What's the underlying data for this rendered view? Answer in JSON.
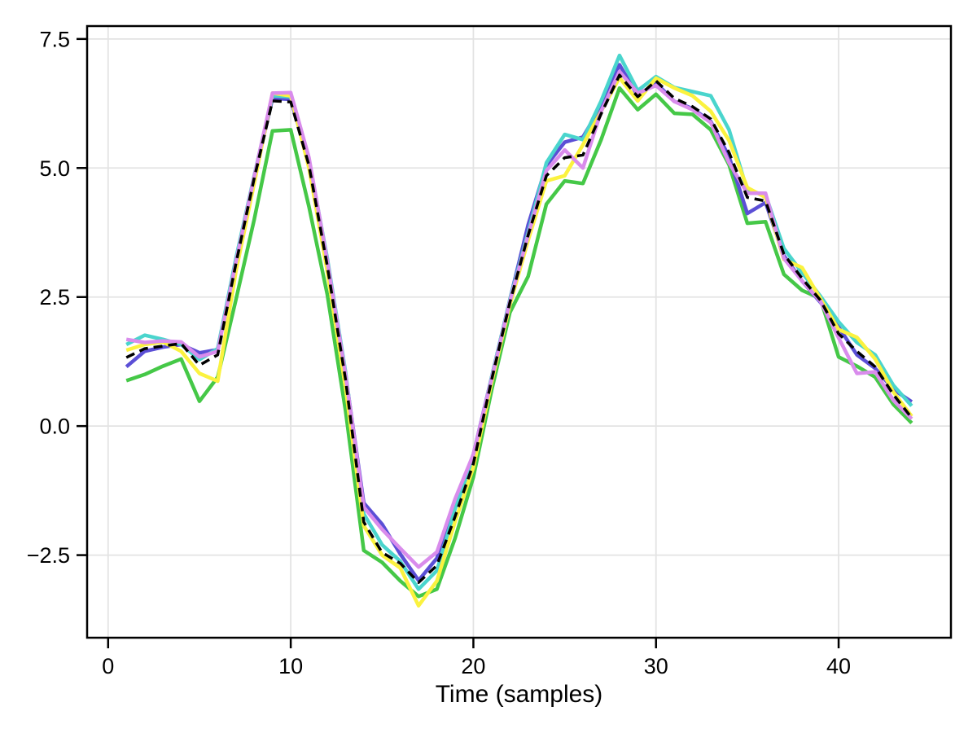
{
  "figure": {
    "background": "#FFFFFF",
    "grid_color": "#E3E3E3",
    "frame_color": "#000000",
    "tick_color": "#000000"
  },
  "chart_data": {
    "type": "line",
    "title": "",
    "xlabel": "Time (samples)",
    "ylabel": "",
    "xlim": [
      -1.15,
      46.15
    ],
    "ylim": [
      -4.1,
      7.75
    ],
    "grid": true,
    "legend": "none",
    "xticks": [
      0,
      10,
      20,
      30,
      40
    ],
    "xtick_labels": [
      "0",
      "10",
      "20",
      "30",
      "40"
    ],
    "yticks": [
      -2.5,
      0.0,
      2.5,
      5.0,
      7.5
    ],
    "ytick_labels": [
      "−2.5",
      "0.0",
      "2.5",
      "5.0",
      "7.5"
    ],
    "x": [
      1,
      2,
      3,
      4,
      5,
      6,
      7,
      8,
      9,
      10,
      11,
      12,
      13,
      14,
      15,
      16,
      17,
      18,
      19,
      20,
      21,
      22,
      23,
      24,
      25,
      26,
      27,
      28,
      29,
      30,
      31,
      32,
      33,
      34,
      35,
      36,
      37,
      38,
      39,
      40,
      41,
      42,
      43,
      44
    ],
    "series": [
      {
        "name": "green",
        "color": "#45C847",
        "dash": false,
        "width": 4.5,
        "values": [
          0.88,
          1.0,
          1.16,
          1.3,
          0.48,
          0.95,
          2.45,
          4.0,
          5.72,
          5.74,
          4.25,
          2.55,
          0.3,
          -2.41,
          -2.64,
          -3.0,
          -3.3,
          -3.16,
          -2.17,
          -0.99,
          0.7,
          2.2,
          2.9,
          4.3,
          4.75,
          4.7,
          5.55,
          6.55,
          6.13,
          6.43,
          6.06,
          6.04,
          5.74,
          5.06,
          3.93,
          3.96,
          2.94,
          2.63,
          2.47,
          1.34,
          1.16,
          0.95,
          0.42,
          0.06
        ]
      },
      {
        "name": "blue",
        "color": "#5B4FD6",
        "dash": false,
        "width": 4.5,
        "values": [
          1.15,
          1.45,
          1.53,
          1.58,
          1.42,
          1.48,
          3.2,
          4.82,
          6.35,
          6.33,
          5.1,
          3.18,
          1.0,
          -1.49,
          -1.9,
          -2.48,
          -2.99,
          -2.56,
          -1.51,
          -0.55,
          0.95,
          2.45,
          3.9,
          5.05,
          5.5,
          5.6,
          6.2,
          7.0,
          6.4,
          6.65,
          6.29,
          6.15,
          5.9,
          5.22,
          4.12,
          4.33,
          3.3,
          2.81,
          2.4,
          1.92,
          1.38,
          1.12,
          0.71,
          0.47
        ]
      },
      {
        "name": "cyan",
        "color": "#4AD5CD",
        "dash": false,
        "width": 4.5,
        "values": [
          1.58,
          1.76,
          1.68,
          1.58,
          1.29,
          1.5,
          3.25,
          4.85,
          6.4,
          6.38,
          5.15,
          3.25,
          1.05,
          -1.7,
          -2.3,
          -2.62,
          -3.16,
          -2.8,
          -1.6,
          -0.62,
          0.95,
          2.45,
          3.75,
          5.1,
          5.65,
          5.55,
          6.3,
          7.18,
          6.5,
          6.77,
          6.56,
          6.48,
          6.4,
          5.74,
          4.56,
          4.48,
          3.44,
          2.97,
          2.52,
          2.02,
          1.62,
          1.38,
          0.79,
          0.39
        ]
      },
      {
        "name": "yellow",
        "color": "#FBF23F",
        "dash": false,
        "width": 4.5,
        "values": [
          1.47,
          1.58,
          1.63,
          1.45,
          1.02,
          0.87,
          3.0,
          4.7,
          6.45,
          6.4,
          5.0,
          3.0,
          0.75,
          -1.93,
          -2.5,
          -2.75,
          -3.48,
          -3.0,
          -1.85,
          -0.8,
          0.85,
          2.35,
          3.6,
          4.75,
          4.85,
          5.45,
          6.1,
          6.75,
          6.3,
          6.74,
          6.55,
          6.4,
          6.1,
          5.53,
          4.62,
          4.43,
          3.23,
          3.07,
          2.47,
          1.87,
          1.72,
          1.3,
          0.66,
          0.19
        ]
      },
      {
        "name": "violet",
        "color": "#D98CEC",
        "dash": false,
        "width": 4.5,
        "values": [
          1.68,
          1.62,
          1.65,
          1.63,
          1.34,
          1.45,
          3.18,
          4.83,
          6.45,
          6.46,
          5.2,
          3.2,
          1.0,
          -1.57,
          -2.0,
          -2.37,
          -2.73,
          -2.44,
          -1.41,
          -0.55,
          0.92,
          2.42,
          3.7,
          4.95,
          5.35,
          5.0,
          6.1,
          6.87,
          6.45,
          6.6,
          6.29,
          6.13,
          5.88,
          5.1,
          4.51,
          4.51,
          3.25,
          2.81,
          2.42,
          1.71,
          1.02,
          1.05,
          0.5,
          0.14
        ]
      },
      {
        "name": "black-dashed",
        "color": "#000000",
        "dash": true,
        "width": 3.5,
        "values": [
          1.33,
          1.5,
          1.55,
          1.6,
          1.18,
          1.38,
          3.15,
          4.8,
          6.3,
          6.28,
          5.05,
          3.1,
          0.9,
          -1.86,
          -2.45,
          -2.66,
          -3.03,
          -2.7,
          -1.75,
          -0.73,
          0.9,
          2.4,
          3.7,
          4.85,
          5.2,
          5.25,
          6.05,
          6.8,
          6.38,
          6.69,
          6.35,
          6.19,
          5.95,
          5.3,
          4.43,
          4.36,
          3.33,
          2.86,
          2.44,
          1.79,
          1.45,
          1.15,
          0.61,
          0.16
        ]
      }
    ]
  }
}
